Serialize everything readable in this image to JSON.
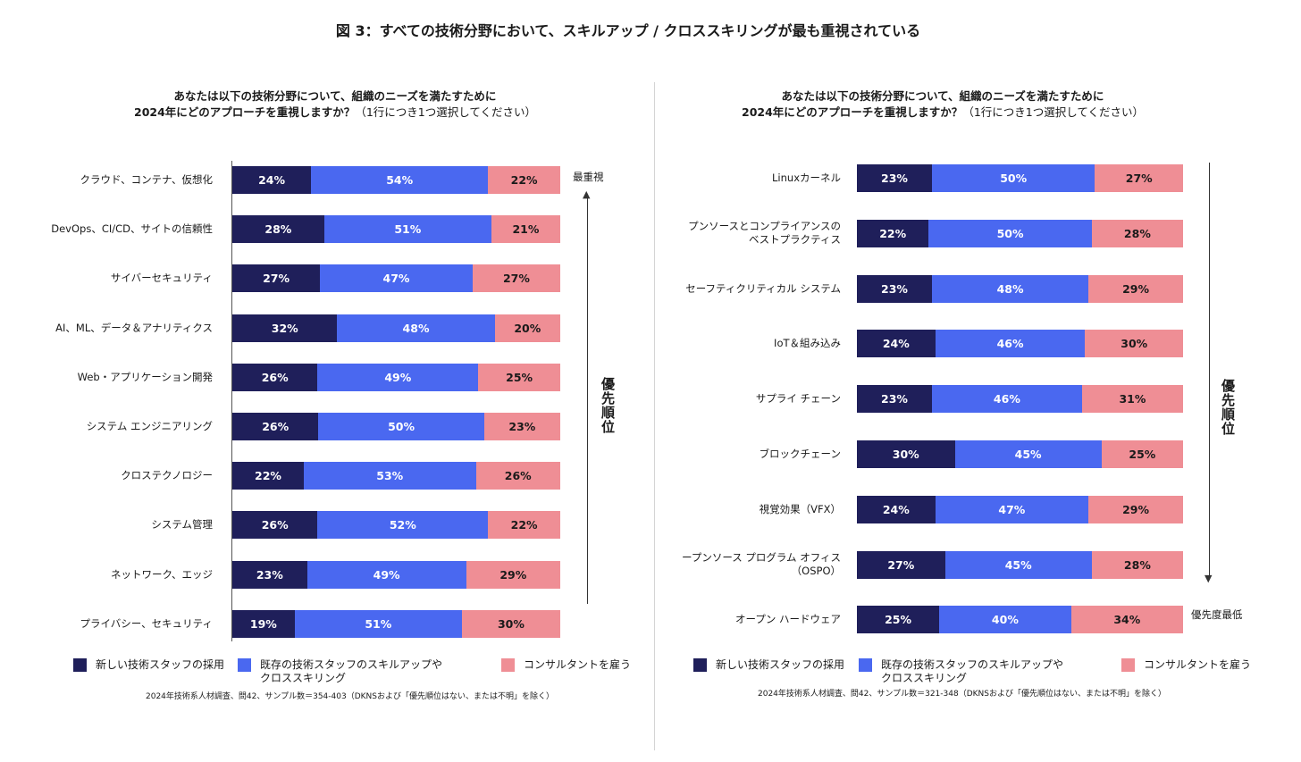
{
  "title": "図 3：すべての技術分野において、スキルアップ / クロススキリングが最も重視されている",
  "colors": {
    "new_hire": "#1f1f5a",
    "upskill": "#4a68f0",
    "consultant": "#ef8e95"
  },
  "legend": [
    "新しい技術スタッフの採用",
    "既存の技術スタッフのスキルアップや\nクロススキリング",
    "コンサルタントを雇う"
  ],
  "priority_label": "優先順位",
  "chart_data": [
    {
      "type": "bar",
      "orientation": "horizontal",
      "stacked": true,
      "question": "あなたは以下の技術分野について、組織のニーズを満たすために",
      "question2": "2024年にどのアプローチを重視しますか？",
      "note": "（1行につき1つ選択してください）",
      "top_label": "最重視",
      "bottom_label": "",
      "categories": [
        "クラウド、コンテナ、仮想化",
        "DevOps、CI/CD、サイトの信頼性",
        "サイバーセキュリティ",
        "AI、ML、データ＆アナリティクス",
        "Web・アプリケーション開発",
        "システム エンジニアリング",
        "クロステクノロジー",
        "システム管理",
        "ネットワーク、エッジ",
        "プライバシー、セキュリティ"
      ],
      "series": [
        {
          "name": "新しい技術スタッフの採用",
          "values": [
            24,
            28,
            27,
            32,
            26,
            26,
            22,
            26,
            23,
            19
          ]
        },
        {
          "name": "既存の技術スタッフのスキルアップやクロススキリング",
          "values": [
            54,
            51,
            47,
            48,
            49,
            50,
            53,
            52,
            49,
            51
          ]
        },
        {
          "name": "コンサルタントを雇う",
          "values": [
            22,
            21,
            27,
            20,
            25,
            23,
            26,
            22,
            29,
            30
          ]
        }
      ],
      "unit": "%",
      "source": "2024年技術系人材調査、問42、サンプル数＝354-403（DKNSおよび「優先順位はない、または不明」を除く）"
    },
    {
      "type": "bar",
      "orientation": "horizontal",
      "stacked": true,
      "question": "あなたは以下の技術分野について、組織のニーズを満たすために",
      "question2": "2024年にどのアプローチを重視しますか？",
      "note": "（1行につき1つ選択してください）",
      "top_label": "",
      "bottom_label": "優先度最低",
      "categories": [
        "Linuxカーネル",
        "プンソースとコンプライアンスの\nベストプラクティス",
        "セーフティクリティカル システム",
        "IoT＆組み込み",
        "サプライ チェーン",
        "ブロックチェーン",
        "視覚効果（VFX）",
        "ープンソース プログラム オフィス\n（OSPO）",
        "オープン ハードウェア"
      ],
      "series": [
        {
          "name": "新しい技術スタッフの採用",
          "values": [
            23,
            22,
            23,
            24,
            23,
            30,
            24,
            27,
            25
          ]
        },
        {
          "name": "既存の技術スタッフのスキルアップやクロススキリング",
          "values": [
            50,
            50,
            48,
            46,
            46,
            45,
            47,
            45,
            40
          ]
        },
        {
          "name": "コンサルタントを雇う",
          "values": [
            27,
            28,
            29,
            30,
            31,
            25,
            29,
            28,
            34
          ]
        }
      ],
      "unit": "%",
      "source": "2024年技術系人材調査、問42、サンプル数＝321-348（DKNSおよび「優先順位はない、または不明」を除く）"
    }
  ]
}
